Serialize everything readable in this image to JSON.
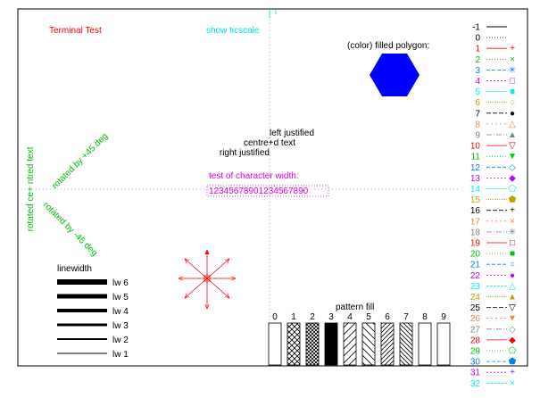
{
  "title": "Terminal Test",
  "ticscale": "show ticscale",
  "polygon_label": "(color) filled polygon:",
  "justify": {
    "left": "left justified",
    "centre": "centre+d text",
    "right": "right justified"
  },
  "charwidth": {
    "label": "test of character width:",
    "sample": "12345678901234567890"
  },
  "rotated": {
    "vertical": "rotated ce+ ntred text",
    "plus45": "rotated by +45 deg",
    "minus45": "rotated by -45 deg"
  },
  "linewidth": {
    "title": "linewidth",
    "items": [
      "lw 6",
      "lw 5",
      "lw 4",
      "lw 3",
      "lw 2",
      "lw 1"
    ]
  },
  "pattern": {
    "title": "pattern fill",
    "labels": [
      "0",
      "1",
      "2",
      "3",
      "4",
      "5",
      "6",
      "7",
      "8",
      "9"
    ]
  },
  "linetypes": [
    {
      "label": "-1",
      "color": "#000000"
    },
    {
      "label": "0",
      "color": "#000000"
    },
    {
      "label": "1",
      "color": "#ff0000"
    },
    {
      "label": "2",
      "color": "#00c000"
    },
    {
      "label": "3",
      "color": "#0080ff"
    },
    {
      "label": "4",
      "color": "#c000ff"
    },
    {
      "label": "5",
      "color": "#00eeee"
    },
    {
      "label": "6",
      "color": "#c0a000"
    },
    {
      "label": "7",
      "color": "#000000"
    },
    {
      "label": "8",
      "color": "#ff8040"
    },
    {
      "label": "9",
      "color": "#808080"
    },
    {
      "label": "10",
      "color": "#ff0000"
    },
    {
      "label": "11",
      "color": "#00c000"
    },
    {
      "label": "12",
      "color": "#0080ff"
    },
    {
      "label": "13",
      "color": "#c000ff"
    },
    {
      "label": "14",
      "color": "#00eeee"
    },
    {
      "label": "15",
      "color": "#c0a000"
    },
    {
      "label": "16",
      "color": "#000000"
    },
    {
      "label": "17",
      "color": "#ff8040"
    },
    {
      "label": "18",
      "color": "#808080"
    },
    {
      "label": "19",
      "color": "#ff0000"
    },
    {
      "label": "20",
      "color": "#00c000"
    },
    {
      "label": "21",
      "color": "#0080ff"
    },
    {
      "label": "22",
      "color": "#c000ff"
    },
    {
      "label": "23",
      "color": "#00eeee"
    },
    {
      "label": "24",
      "color": "#c0a000"
    },
    {
      "label": "25",
      "color": "#000000"
    },
    {
      "label": "26",
      "color": "#ff8040"
    },
    {
      "label": "27",
      "color": "#808080"
    },
    {
      "label": "28",
      "color": "#ff0000"
    },
    {
      "label": "29",
      "color": "#00c000"
    },
    {
      "label": "30",
      "color": "#0080ff"
    },
    {
      "label": "31",
      "color": "#c000ff"
    },
    {
      "label": "32",
      "color": "#00eeee"
    }
  ],
  "colors": {
    "title": "#ff0000",
    "ticscale": "#00e0e0",
    "polygon": "#0000ff",
    "charwidth": "#e000e0",
    "rotated": "#00c000",
    "arrows": "#ff0000"
  }
}
